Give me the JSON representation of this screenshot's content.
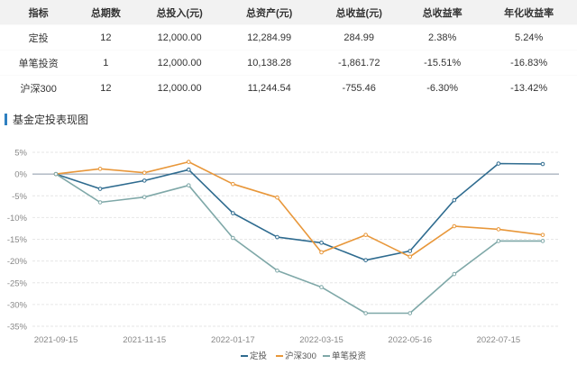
{
  "table": {
    "headers": [
      "指标",
      "总期数",
      "总投入(元)",
      "总资产(元)",
      "总收益(元)",
      "总收益率",
      "年化收益率"
    ],
    "rows": [
      {
        "name": "定投",
        "periods": "12",
        "invested": "12,000.00",
        "assets": "12,284.99",
        "profit": "284.99",
        "return": "2.38%",
        "annual": "5.24%"
      },
      {
        "name": "单笔投资",
        "periods": "1",
        "invested": "12,000.00",
        "assets": "10,138.28",
        "profit": "-1,861.72",
        "return": "-15.51%",
        "annual": "-16.83%"
      },
      {
        "name": "沪深300",
        "periods": "12",
        "invested": "12,000.00",
        "assets": "11,244.54",
        "profit": "-755.46",
        "return": "-6.30%",
        "annual": "-13.42%"
      }
    ]
  },
  "section_title": "基金定投表现图",
  "colors": {
    "定投": "#2e6b8f",
    "沪深300": "#e8973a",
    "单笔投资": "#7fa8a8",
    "positive": "#e0505a",
    "negative": "#3a9a6a",
    "accent_bar": "#2f80c0"
  },
  "chart_data": {
    "type": "line",
    "title": "",
    "x_tick_labels": [
      "2021-09-15",
      "2021-11-15",
      "2022-01-17",
      "2022-03-15",
      "2022-05-16",
      "2022-07-15"
    ],
    "x": [
      "2021-09-15",
      "2021-10-15",
      "2021-11-15",
      "2021-12-15",
      "2022-01-17",
      "2022-02-15",
      "2022-03-15",
      "2022-04-15",
      "2022-05-16",
      "2022-06-15",
      "2022-07-15",
      "2022-08-15"
    ],
    "y_tick_labels": [
      "5%",
      "0%",
      "-5%",
      "-10%",
      "-15%",
      "-20%",
      "-25%",
      "-30%",
      "-35%"
    ],
    "ylim": [
      -35,
      5
    ],
    "series": [
      {
        "name": "定投",
        "values": [
          0,
          -3.4,
          -1.5,
          1.0,
          -9,
          -14.5,
          -15.8,
          -19.8,
          -17.7,
          -6,
          2.4,
          2.3
        ]
      },
      {
        "name": "沪深300",
        "values": [
          0,
          1.2,
          0.3,
          2.8,
          -2.3,
          -5.4,
          -18,
          -14,
          -19,
          -12,
          -12.7,
          -14
        ]
      },
      {
        "name": "单笔投资",
        "values": [
          0,
          -6.5,
          -5.3,
          -2.6,
          -14.7,
          -22.2,
          -26,
          -32,
          -32,
          -23,
          -15.4,
          -15.4
        ]
      }
    ],
    "legend": [
      "定投",
      "沪深300",
      "单笔投资"
    ],
    "legend_position": "bottom",
    "grid": "horizontal"
  }
}
